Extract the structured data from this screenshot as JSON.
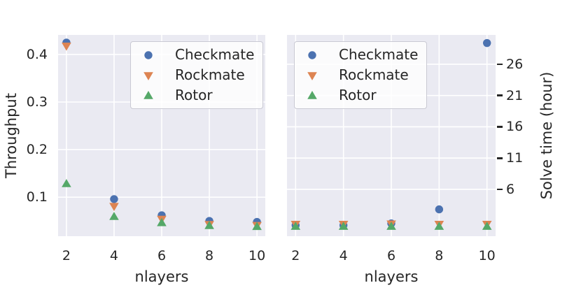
{
  "colors": {
    "background": "#ffffff",
    "panel_background": "#eaeaf2",
    "grid": "#ffffff",
    "text": "#262626",
    "checkmate_blue": "#4c72b0",
    "rockmate_orange": "#dd8452",
    "rotor_green": "#55a868"
  },
  "series_style": [
    {
      "name": "Checkmate",
      "marker": "circle",
      "color": "#4c72b0"
    },
    {
      "name": "Rockmate",
      "marker": "triangle-down",
      "color": "#dd8452"
    },
    {
      "name": "Rotor",
      "marker": "triangle-up",
      "color": "#55a868"
    }
  ],
  "chart_data": [
    {
      "type": "scatter",
      "title": "",
      "xlabel": "nlayers",
      "ylabel": "Throughput",
      "yaxis_side": "left",
      "grid": true,
      "legend_position": "upper right inside",
      "x": [
        2,
        4,
        6,
        8,
        10
      ],
      "xticks": [
        2,
        4,
        6,
        8,
        10
      ],
      "xtick_labels": [
        "2",
        "4",
        "6",
        "8",
        "10"
      ],
      "yticks": [
        0.1,
        0.2,
        0.3,
        0.4
      ],
      "ytick_labels": [
        "0.1",
        "0.2",
        "0.3",
        "0.4"
      ],
      "xlim": [
        1.65,
        10.35
      ],
      "ylim": [
        0.018,
        0.441
      ],
      "legend": [
        "Checkmate",
        "Rockmate",
        "Rotor"
      ],
      "series": [
        {
          "name": "Checkmate",
          "values": [
            0.425,
            0.096,
            0.062,
            0.05,
            0.048
          ]
        },
        {
          "name": "Rockmate",
          "values": [
            0.418,
            0.081,
            0.054,
            0.043,
            0.041
          ]
        },
        {
          "name": "Rotor",
          "values": [
            0.128,
            0.059,
            0.046,
            0.04,
            0.038
          ]
        }
      ]
    },
    {
      "type": "scatter",
      "title": "",
      "xlabel": "nlayers",
      "ylabel": "Solve time (hour)",
      "yaxis_side": "right",
      "grid": true,
      "legend_position": "upper left inside",
      "x": [
        2,
        4,
        6,
        8,
        10
      ],
      "xticks": [
        2,
        4,
        6,
        8,
        10
      ],
      "xtick_labels": [
        "2",
        "4",
        "6",
        "8",
        "10"
      ],
      "yticks": [
        6,
        11,
        16,
        21,
        26
      ],
      "ytick_labels": [
        "6",
        "11",
        "16",
        "21",
        "26"
      ],
      "xlim": [
        1.64,
        10.36
      ],
      "ylim": [
        -1.49,
        30.69
      ],
      "legend": [
        "Checkmate",
        "Rockmate",
        "Rotor"
      ],
      "series": [
        {
          "name": "Checkmate",
          "values": [
            0.25,
            0.25,
            0.55,
            2.8,
            29.4
          ]
        },
        {
          "name": "Rockmate",
          "values": [
            0.45,
            0.45,
            0.5,
            0.45,
            0.45
          ]
        },
        {
          "name": "Rotor",
          "values": [
            0.05,
            0.05,
            0.05,
            0.05,
            0.05
          ]
        }
      ]
    }
  ]
}
